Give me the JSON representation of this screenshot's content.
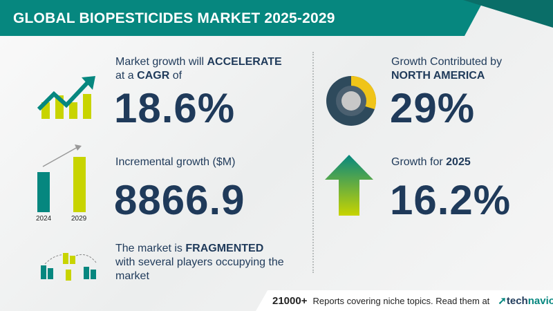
{
  "header": {
    "title": "GLOBAL BIOPESTICIDES MARKET 2025-2029"
  },
  "cagr": {
    "line1_prefix": "Market growth will ",
    "line1_bold": "ACCELERATE",
    "line2_prefix": "at a ",
    "line2_bold": "CAGR",
    "line2_suffix": "  of",
    "value": "18.6%",
    "icon": "trend-up-chart-icon"
  },
  "incremental": {
    "label": "Incremental growth ($M)",
    "value": "8866.9",
    "bar_labels": [
      "2024",
      "2029"
    ],
    "icon": "bar-growth-icon"
  },
  "market": {
    "prefix": "The market is ",
    "bold": "FRAGMENTED",
    "line2": "with several players occupying the",
    "line3": "market",
    "icon": "fragmented-market-icon"
  },
  "region": {
    "line1": "Growth Contributed by",
    "bold": "NORTH AMERICA",
    "value": "29%",
    "icon": "donut-chart-icon",
    "share": 0.29
  },
  "growth_year": {
    "prefix": "Growth for ",
    "bold": "2025",
    "value": "16.2%",
    "icon": "up-arrow-icon"
  },
  "footer": {
    "count": "21000+",
    "text": "Reports covering niche topics. Read them at",
    "brand_a": "tech",
    "brand_b": "navio"
  },
  "colors": {
    "teal": "#06877f",
    "navy": "#1f3a5a",
    "lime": "#c8d400",
    "yellow": "#f0c419"
  }
}
